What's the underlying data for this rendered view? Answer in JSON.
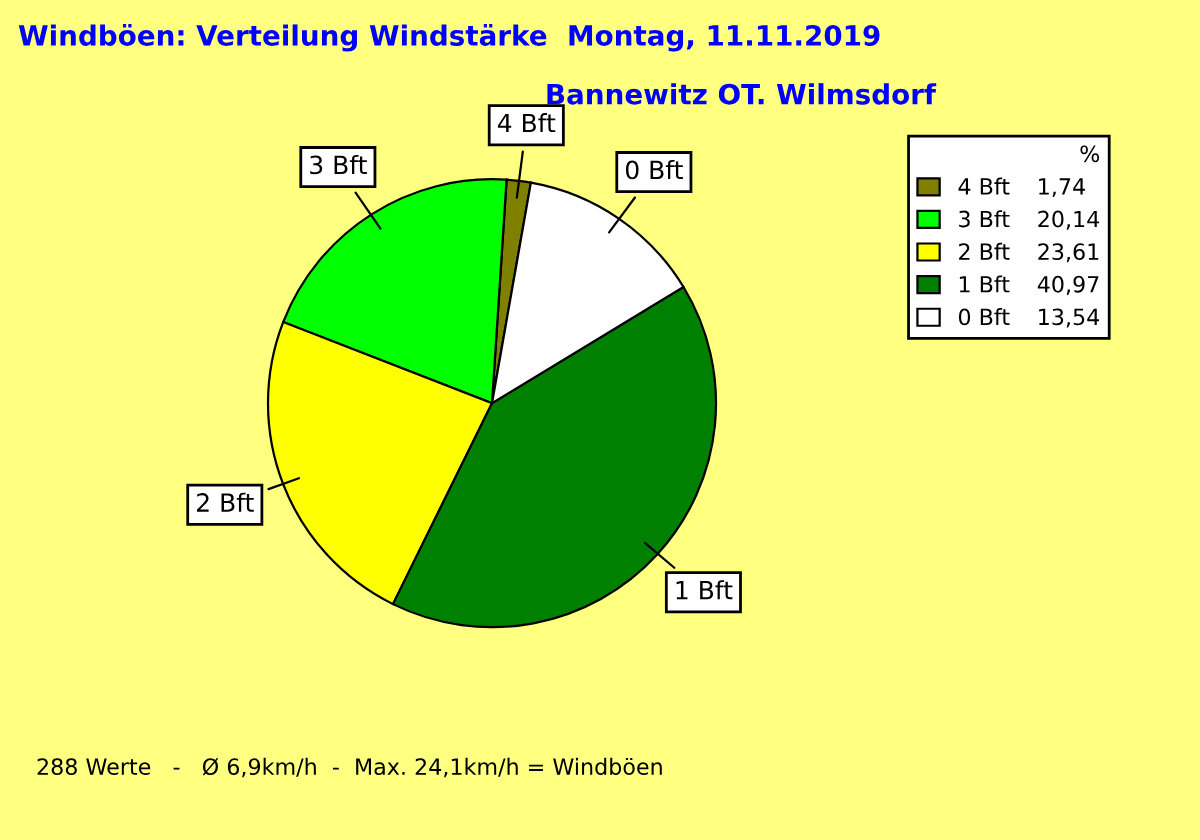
{
  "chart_data": {
    "type": "pie",
    "title": "Windböen: Verteilung Windstärke  Montag, 11.11.2019",
    "subtitle": "Bannewitz OT. Wilmsdorf",
    "categories": [
      "4 Bft",
      "3 Bft",
      "2 Bft",
      "1 Bft",
      "0 Bft"
    ],
    "values": [
      1.74,
      20.14,
      23.61,
      40.97,
      13.54
    ],
    "value_labels": [
      "1,74",
      "20,14",
      "23,61",
      "40,97",
      "13,54"
    ],
    "colors": [
      "#808000",
      "#00ff00",
      "#ffff00",
      "#008000",
      "#ffffff"
    ],
    "legend": "top right",
    "legend_title": "%",
    "annotations": [
      "288 Werte   -   Ø 6,9km/h  -  Max. 24,1km/h = Windböen"
    ]
  }
}
